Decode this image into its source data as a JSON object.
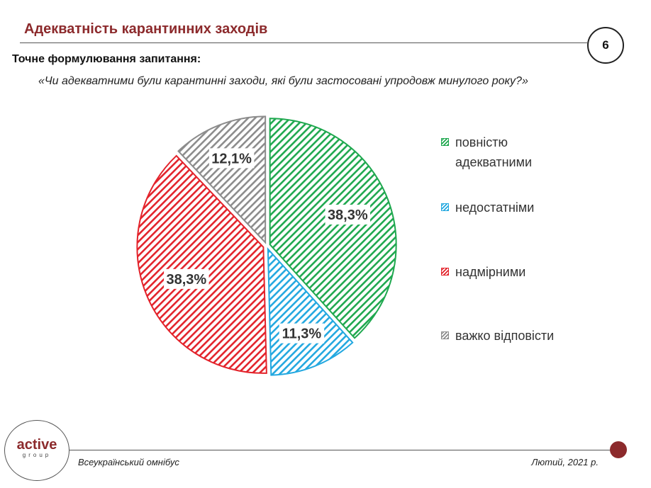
{
  "header": {
    "title": "Адекватність карантинних заходів",
    "page_number": "6"
  },
  "question": {
    "label": "Точне формулювання запитання:",
    "text": "«Чи адекватними були карантинні заходи, які були застосовані упродовж минулого року?»"
  },
  "chart_data": {
    "type": "pie",
    "title": "",
    "categories": [
      "повністю адекватними",
      "недостатніми",
      "надмірними",
      "важко відповісти"
    ],
    "values": [
      38.3,
      11.3,
      38.3,
      12.1
    ],
    "value_labels": [
      "38,3%",
      "11,3%",
      "38,3%",
      "12,1%"
    ],
    "colors": [
      "#1fa84f",
      "#23a8e0",
      "#e3232b",
      "#8c8c8c"
    ],
    "start": "12 o'clock, clockwise",
    "legend_position": "right",
    "exploded": true,
    "fill_pattern": "diagonal-hatch"
  },
  "legend": {
    "items": [
      {
        "label": "повністю адекватними",
        "color": "#1fa84f"
      },
      {
        "label": "недостатніми",
        "color": "#23a8e0"
      },
      {
        "label": "надмірними",
        "color": "#e3232b"
      },
      {
        "label": "важко відповісти",
        "color": "#8c8c8c"
      }
    ]
  },
  "footer": {
    "logo_main": "active",
    "logo_sub": "group",
    "left_text": "Всеукраїнський омнібус",
    "right_text": "Лютий, 2021 р."
  }
}
